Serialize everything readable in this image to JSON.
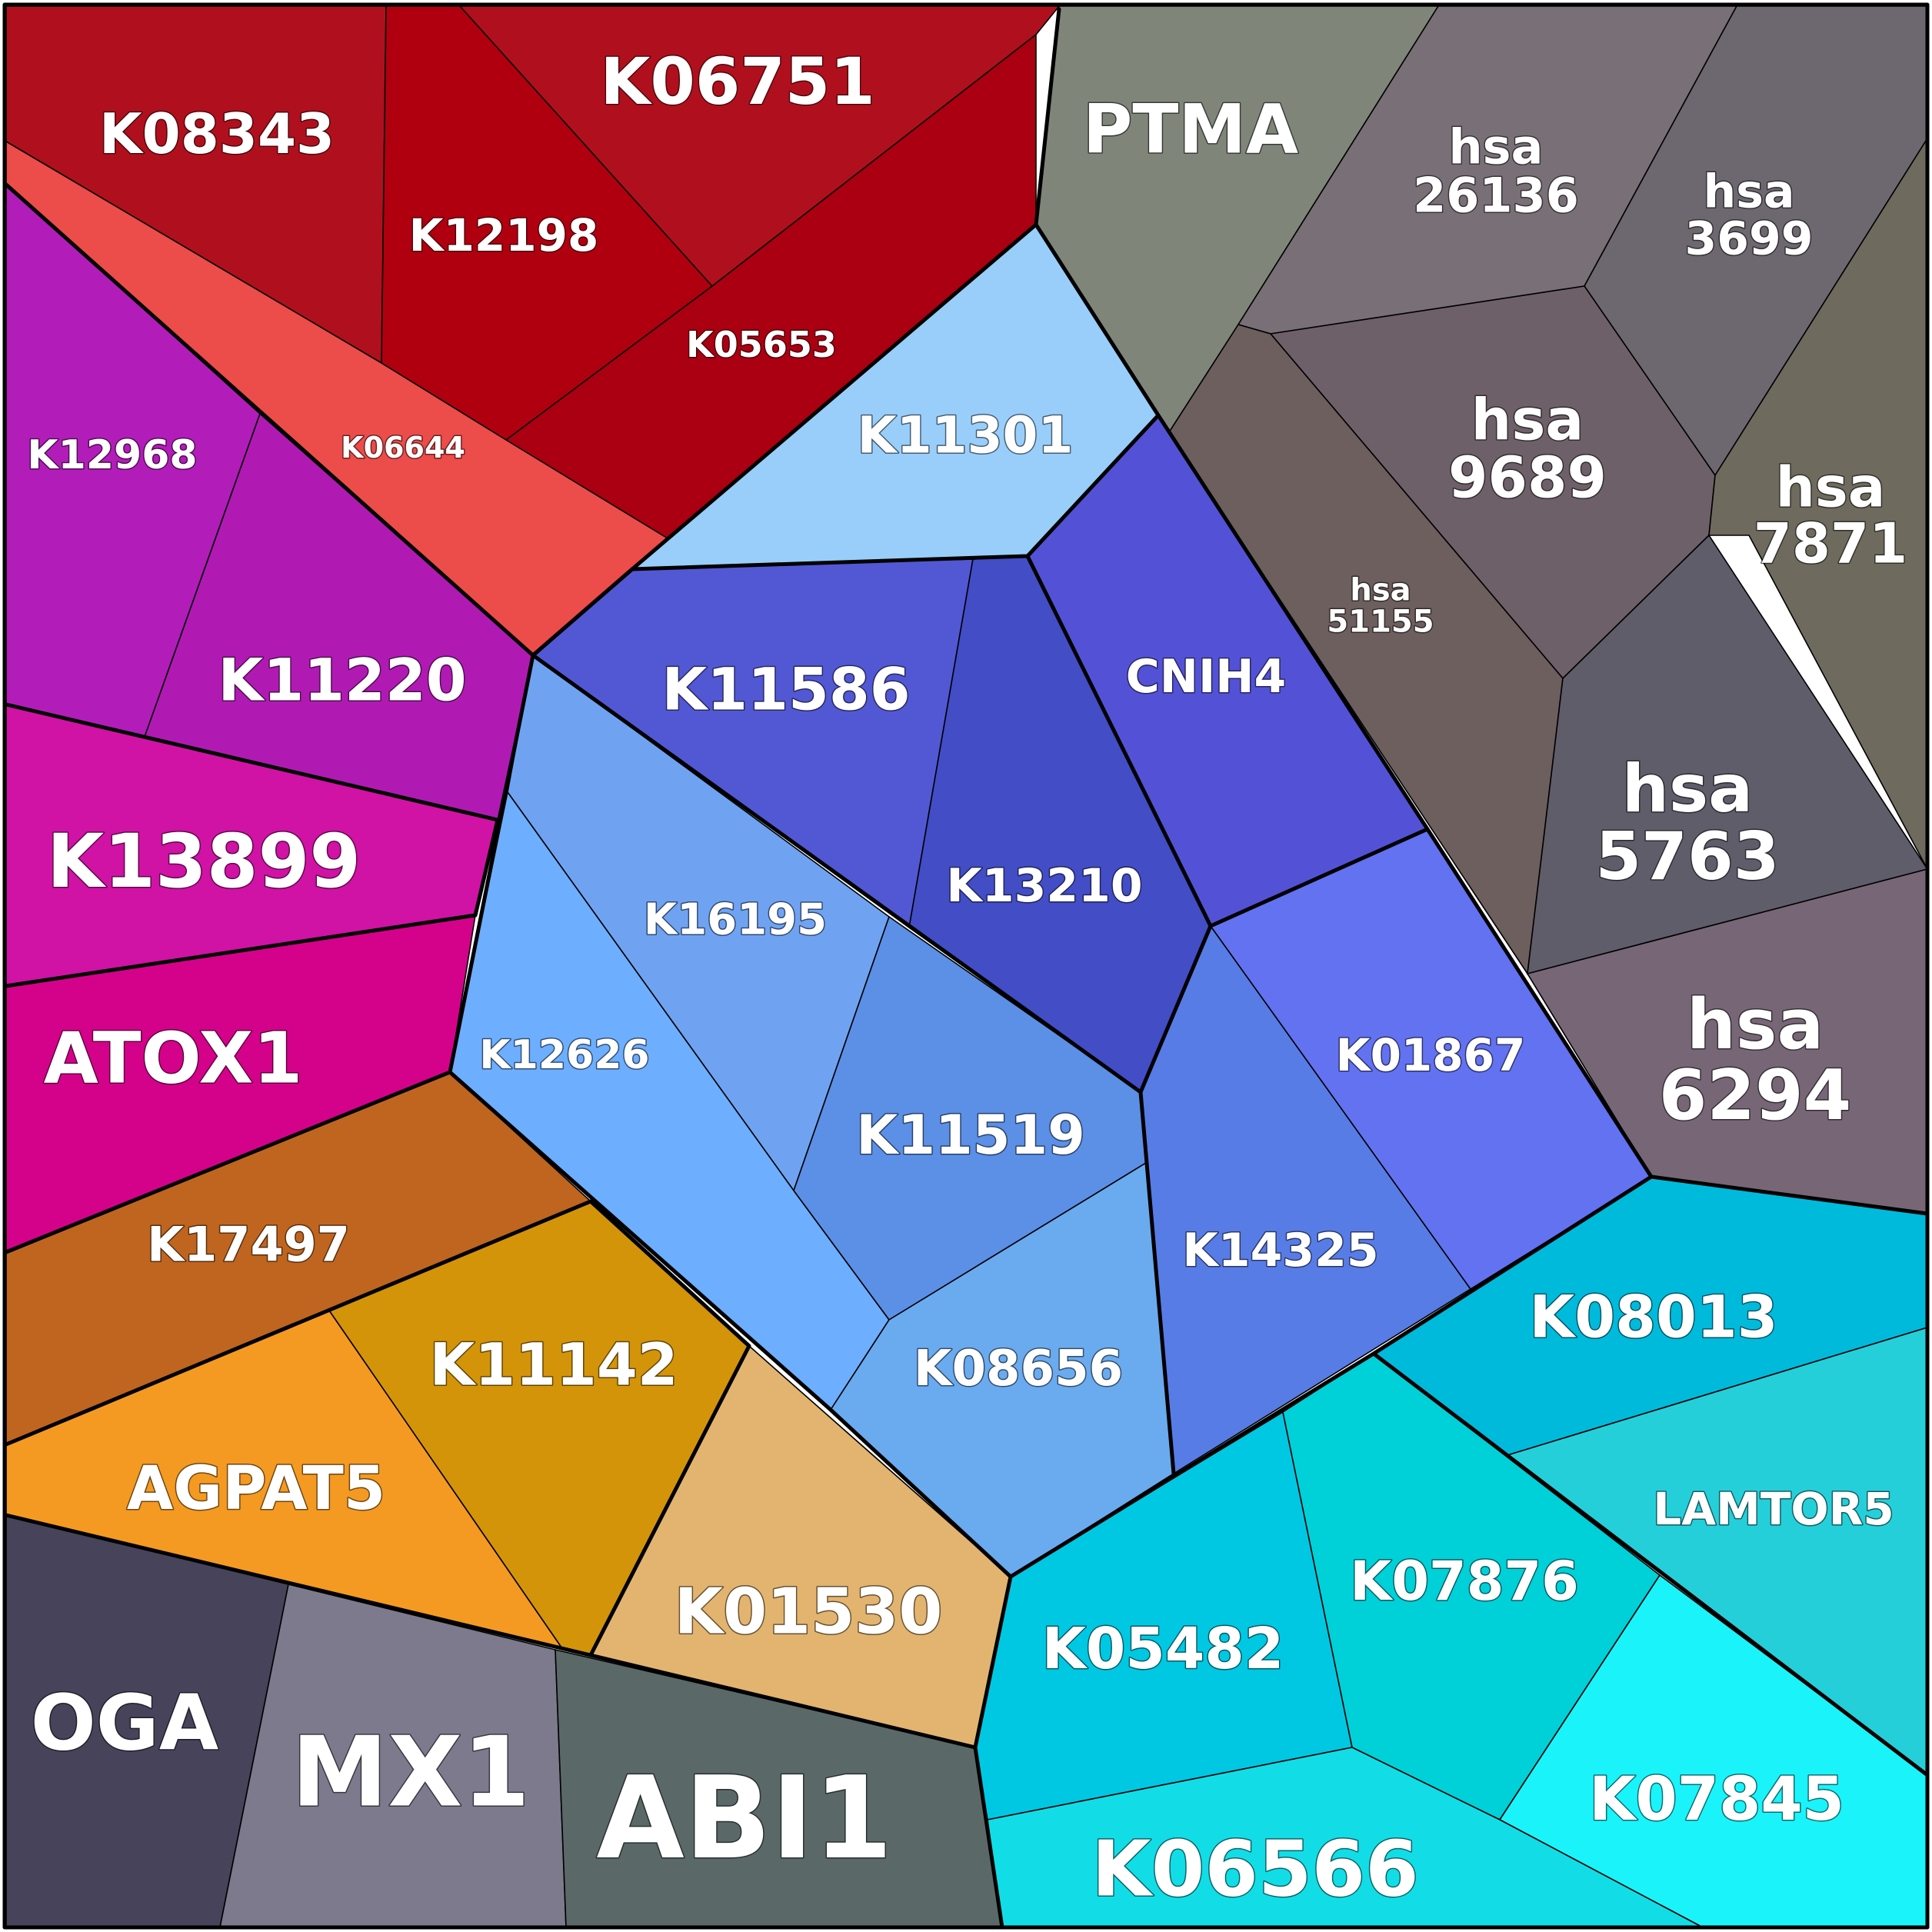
{
  "colors": {
    "K08343": "#b0101d",
    "K12198": "#b00010",
    "K06751": "#b0101d",
    "K05653": "#aa0012",
    "K06644": "#ec4c4a",
    "K12968": "#b21db9",
    "K11220": "#b01ab3",
    "K13899": "#d012a5",
    "ATOX1": "#d4028a",
    "PTMA": "#80857a",
    "hsa_26136": "#787076",
    "hsa_3699": "#6d6870",
    "hsa_9689": "#6e6068",
    "hsa_7871": "#6e6a5e",
    "hsa_51155": "#6c5f5e",
    "hsa_5763": "#605d6a",
    "hsa_6294": "#776776",
    "K11301": "#99cefa",
    "K11586": "#5258d3",
    "K13210": "#424dc6",
    "CNIH4": "#5352d6",
    "K16195": "#6fa3f2",
    "K12626": "#6eaefe",
    "K11519": "#5c8fe6",
    "K14325": "#587ce6",
    "K01867": "#6372f1",
    "K08656": "#6aaaef",
    "K17497": "#bf6520",
    "K11142": "#d3940a",
    "AGPAT5": "#f49a22",
    "K01530": "#e2b46f",
    "OGA": "#46435a",
    "MX1": "#7c7a8c",
    "ABI1": "#5b6868",
    "K05482": "#00c8e2",
    "K07876": "#00d0d8",
    "K08013": "#00badb",
    "LAMTOR5": "#25cfda",
    "K07845": "#1bf3fa",
    "K06566": "#12dde6"
  },
  "cells": [
    {
      "id": "K08343",
      "label": "K08343"
    },
    {
      "id": "K12198",
      "label": "K12198"
    },
    {
      "id": "K06751",
      "label": "K06751"
    },
    {
      "id": "K05653",
      "label": "K05653"
    },
    {
      "id": "K06644",
      "label": "K06644"
    },
    {
      "id": "K12968",
      "label": "K12968"
    },
    {
      "id": "K11220",
      "label": "K11220"
    },
    {
      "id": "K13899",
      "label": "K13899"
    },
    {
      "id": "ATOX1",
      "label": "ATOX1"
    },
    {
      "id": "PTMA",
      "label": "PTMA"
    },
    {
      "id": "hsa_26136",
      "label": "hsa\n26136"
    },
    {
      "id": "hsa_3699",
      "label": "hsa\n3699"
    },
    {
      "id": "hsa_9689",
      "label": "hsa\n9689"
    },
    {
      "id": "hsa_7871",
      "label": "hsa\n7871"
    },
    {
      "id": "hsa_51155",
      "label": "hsa\n51155"
    },
    {
      "id": "hsa_5763",
      "label": "hsa\n5763"
    },
    {
      "id": "hsa_6294",
      "label": "hsa\n6294"
    },
    {
      "id": "K11301",
      "label": "K11301"
    },
    {
      "id": "K11586",
      "label": "K11586"
    },
    {
      "id": "K13210",
      "label": "K13210"
    },
    {
      "id": "CNIH4",
      "label": "CNIH4"
    },
    {
      "id": "K16195",
      "label": "K16195"
    },
    {
      "id": "K12626",
      "label": "K12626"
    },
    {
      "id": "K11519",
      "label": "K11519"
    },
    {
      "id": "K14325",
      "label": "K14325"
    },
    {
      "id": "K01867",
      "label": "K01867"
    },
    {
      "id": "K08656",
      "label": "K08656"
    },
    {
      "id": "K17497",
      "label": "K17497"
    },
    {
      "id": "K11142",
      "label": "K11142"
    },
    {
      "id": "AGPAT5",
      "label": "AGPAT5"
    },
    {
      "id": "K01530",
      "label": "K01530"
    },
    {
      "id": "OGA",
      "label": "OGA"
    },
    {
      "id": "MX1",
      "label": "MX1"
    },
    {
      "id": "ABI1",
      "label": "ABI1"
    },
    {
      "id": "K05482",
      "label": "K05482"
    },
    {
      "id": "K07876",
      "label": "K07876"
    },
    {
      "id": "K08013",
      "label": "K08013"
    },
    {
      "id": "LAMTOR5",
      "label": "LAMTOR5"
    },
    {
      "id": "K07845",
      "label": "K07845"
    },
    {
      "id": "K06566",
      "label": "K06566"
    }
  ]
}
